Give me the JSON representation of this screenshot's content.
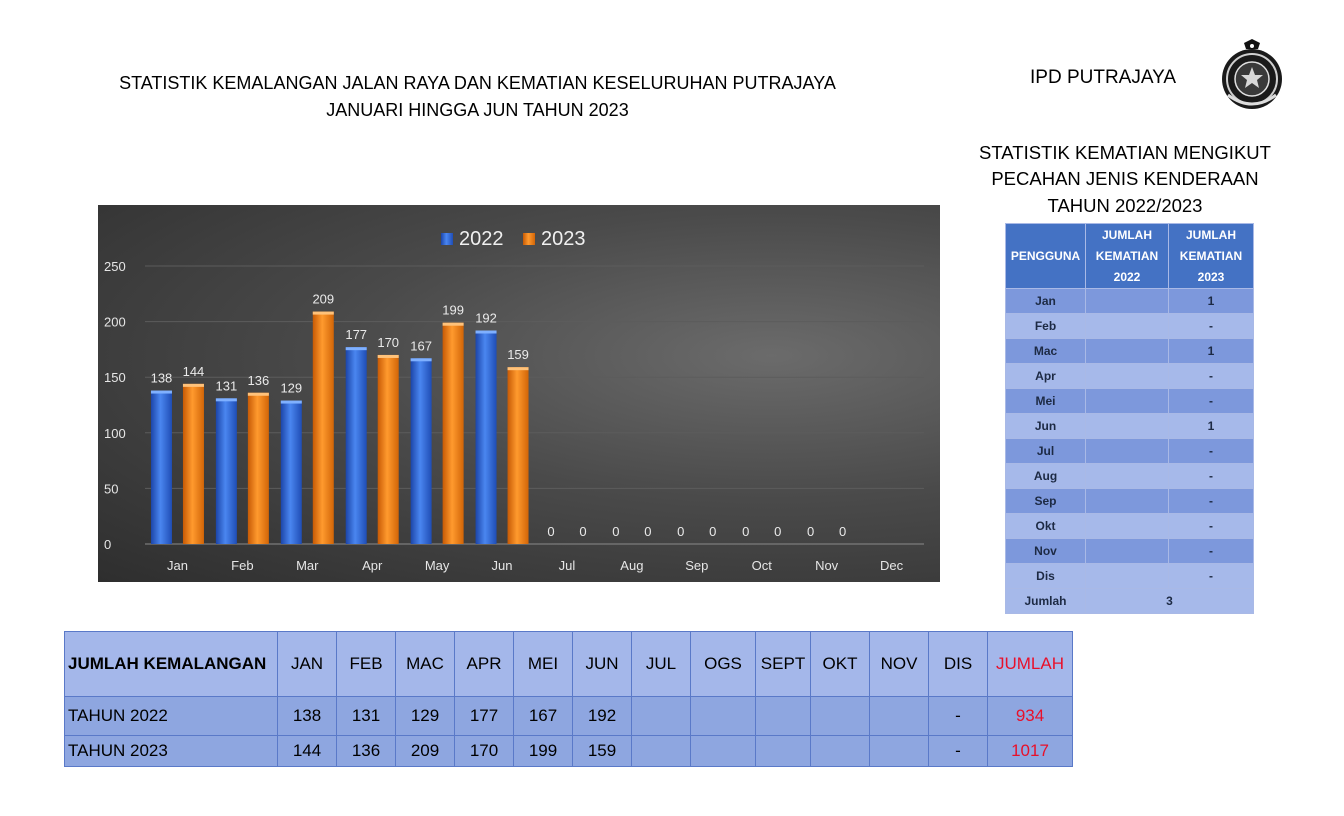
{
  "header": {
    "title_line1": "STATISTIK KEMALANGAN JALAN RAYA DAN KEMATIAN KESELURUHAN  PUTRAJAYA",
    "title_line2": "JANUARI HINGGA JUN TAHUN 2023",
    "agency": "IPD PUTRAJAYA",
    "logo_icon": "police-crest-icon"
  },
  "side": {
    "title_lines": [
      "STATISTIK KEMATIAN MENGIKUT",
      "PECAHAN JENIS KENDERAAN",
      "TAHUN 2022/2023"
    ],
    "headers": [
      "PENGGUNA",
      "JUMLAH",
      "KEMATIAN",
      "2022",
      "JUMLAH",
      "KEMATIAN",
      "2023"
    ],
    "rows": [
      {
        "month": "Jan",
        "y2022": "",
        "y2023": "1"
      },
      {
        "month": "Feb",
        "y2022": "",
        "y2023": "-"
      },
      {
        "month": "Mac",
        "y2022": "",
        "y2023": "1"
      },
      {
        "month": "Apr",
        "y2022": "",
        "y2023": "-"
      },
      {
        "month": "Mei",
        "y2022": "",
        "y2023": "-"
      },
      {
        "month": "Jun",
        "y2022": "",
        "y2023": "1"
      },
      {
        "month": "Jul",
        "y2022": "",
        "y2023": "-"
      },
      {
        "month": "Aug",
        "y2022": "",
        "y2023": "-"
      },
      {
        "month": "Sep",
        "y2022": "",
        "y2023": "-"
      },
      {
        "month": "Okt",
        "y2022": "",
        "y2023": "-"
      },
      {
        "month": "Nov",
        "y2022": "",
        "y2023": "-"
      },
      {
        "month": "Dis",
        "y2022": "",
        "y2023": "-"
      }
    ],
    "total_label": "Jumlah",
    "total_value": "3",
    "colors": {
      "header": "#4472c4",
      "row_dark": "#7d98dc",
      "row_light": "#a6b9ea"
    }
  },
  "bottom": {
    "headers": [
      "JUMLAH KEMALANGAN",
      "JAN",
      "FEB",
      "MAC",
      "APR",
      "MEI",
      "JUN",
      "JUL",
      "OGS",
      "SEPT",
      "OKT",
      "NOV",
      "DIS",
      "JUMLAH"
    ],
    "rows": [
      {
        "label": "TAHUN 2022",
        "values": [
          "138",
          "131",
          "129",
          "177",
          "167",
          "192",
          "",
          "",
          "",
          "",
          "",
          "-"
        ],
        "total": "934"
      },
      {
        "label": "TAHUN 2023",
        "values": [
          "144",
          "136",
          "209",
          "170",
          "199",
          "159",
          "",
          "",
          "",
          "",
          "",
          "-"
        ],
        "total": "1017"
      }
    ],
    "colors": {
      "total": "#e8102a"
    }
  },
  "chart_data": {
    "type": "bar",
    "categories": [
      "Jan",
      "Feb",
      "Mar",
      "Apr",
      "May",
      "Jun",
      "Jul",
      "Aug",
      "Sep",
      "Oct",
      "Nov",
      "Dec"
    ],
    "series": [
      {
        "name": "2022",
        "color": "#2f65d2",
        "values": [
          138,
          131,
          129,
          177,
          167,
          192,
          0,
          0,
          0,
          0,
          0,
          null
        ]
      },
      {
        "name": "2023",
        "color": "#f07b12",
        "values": [
          144,
          136,
          209,
          170,
          199,
          159,
          0,
          0,
          0,
          0,
          0,
          null
        ]
      }
    ],
    "ylim": [
      0,
      250
    ],
    "yticks": [
      "0",
      "50",
      "100",
      "150",
      "200",
      "250"
    ],
    "grid": true,
    "legend": "top-center",
    "data_labels": true,
    "background": "#3a3a3a"
  }
}
